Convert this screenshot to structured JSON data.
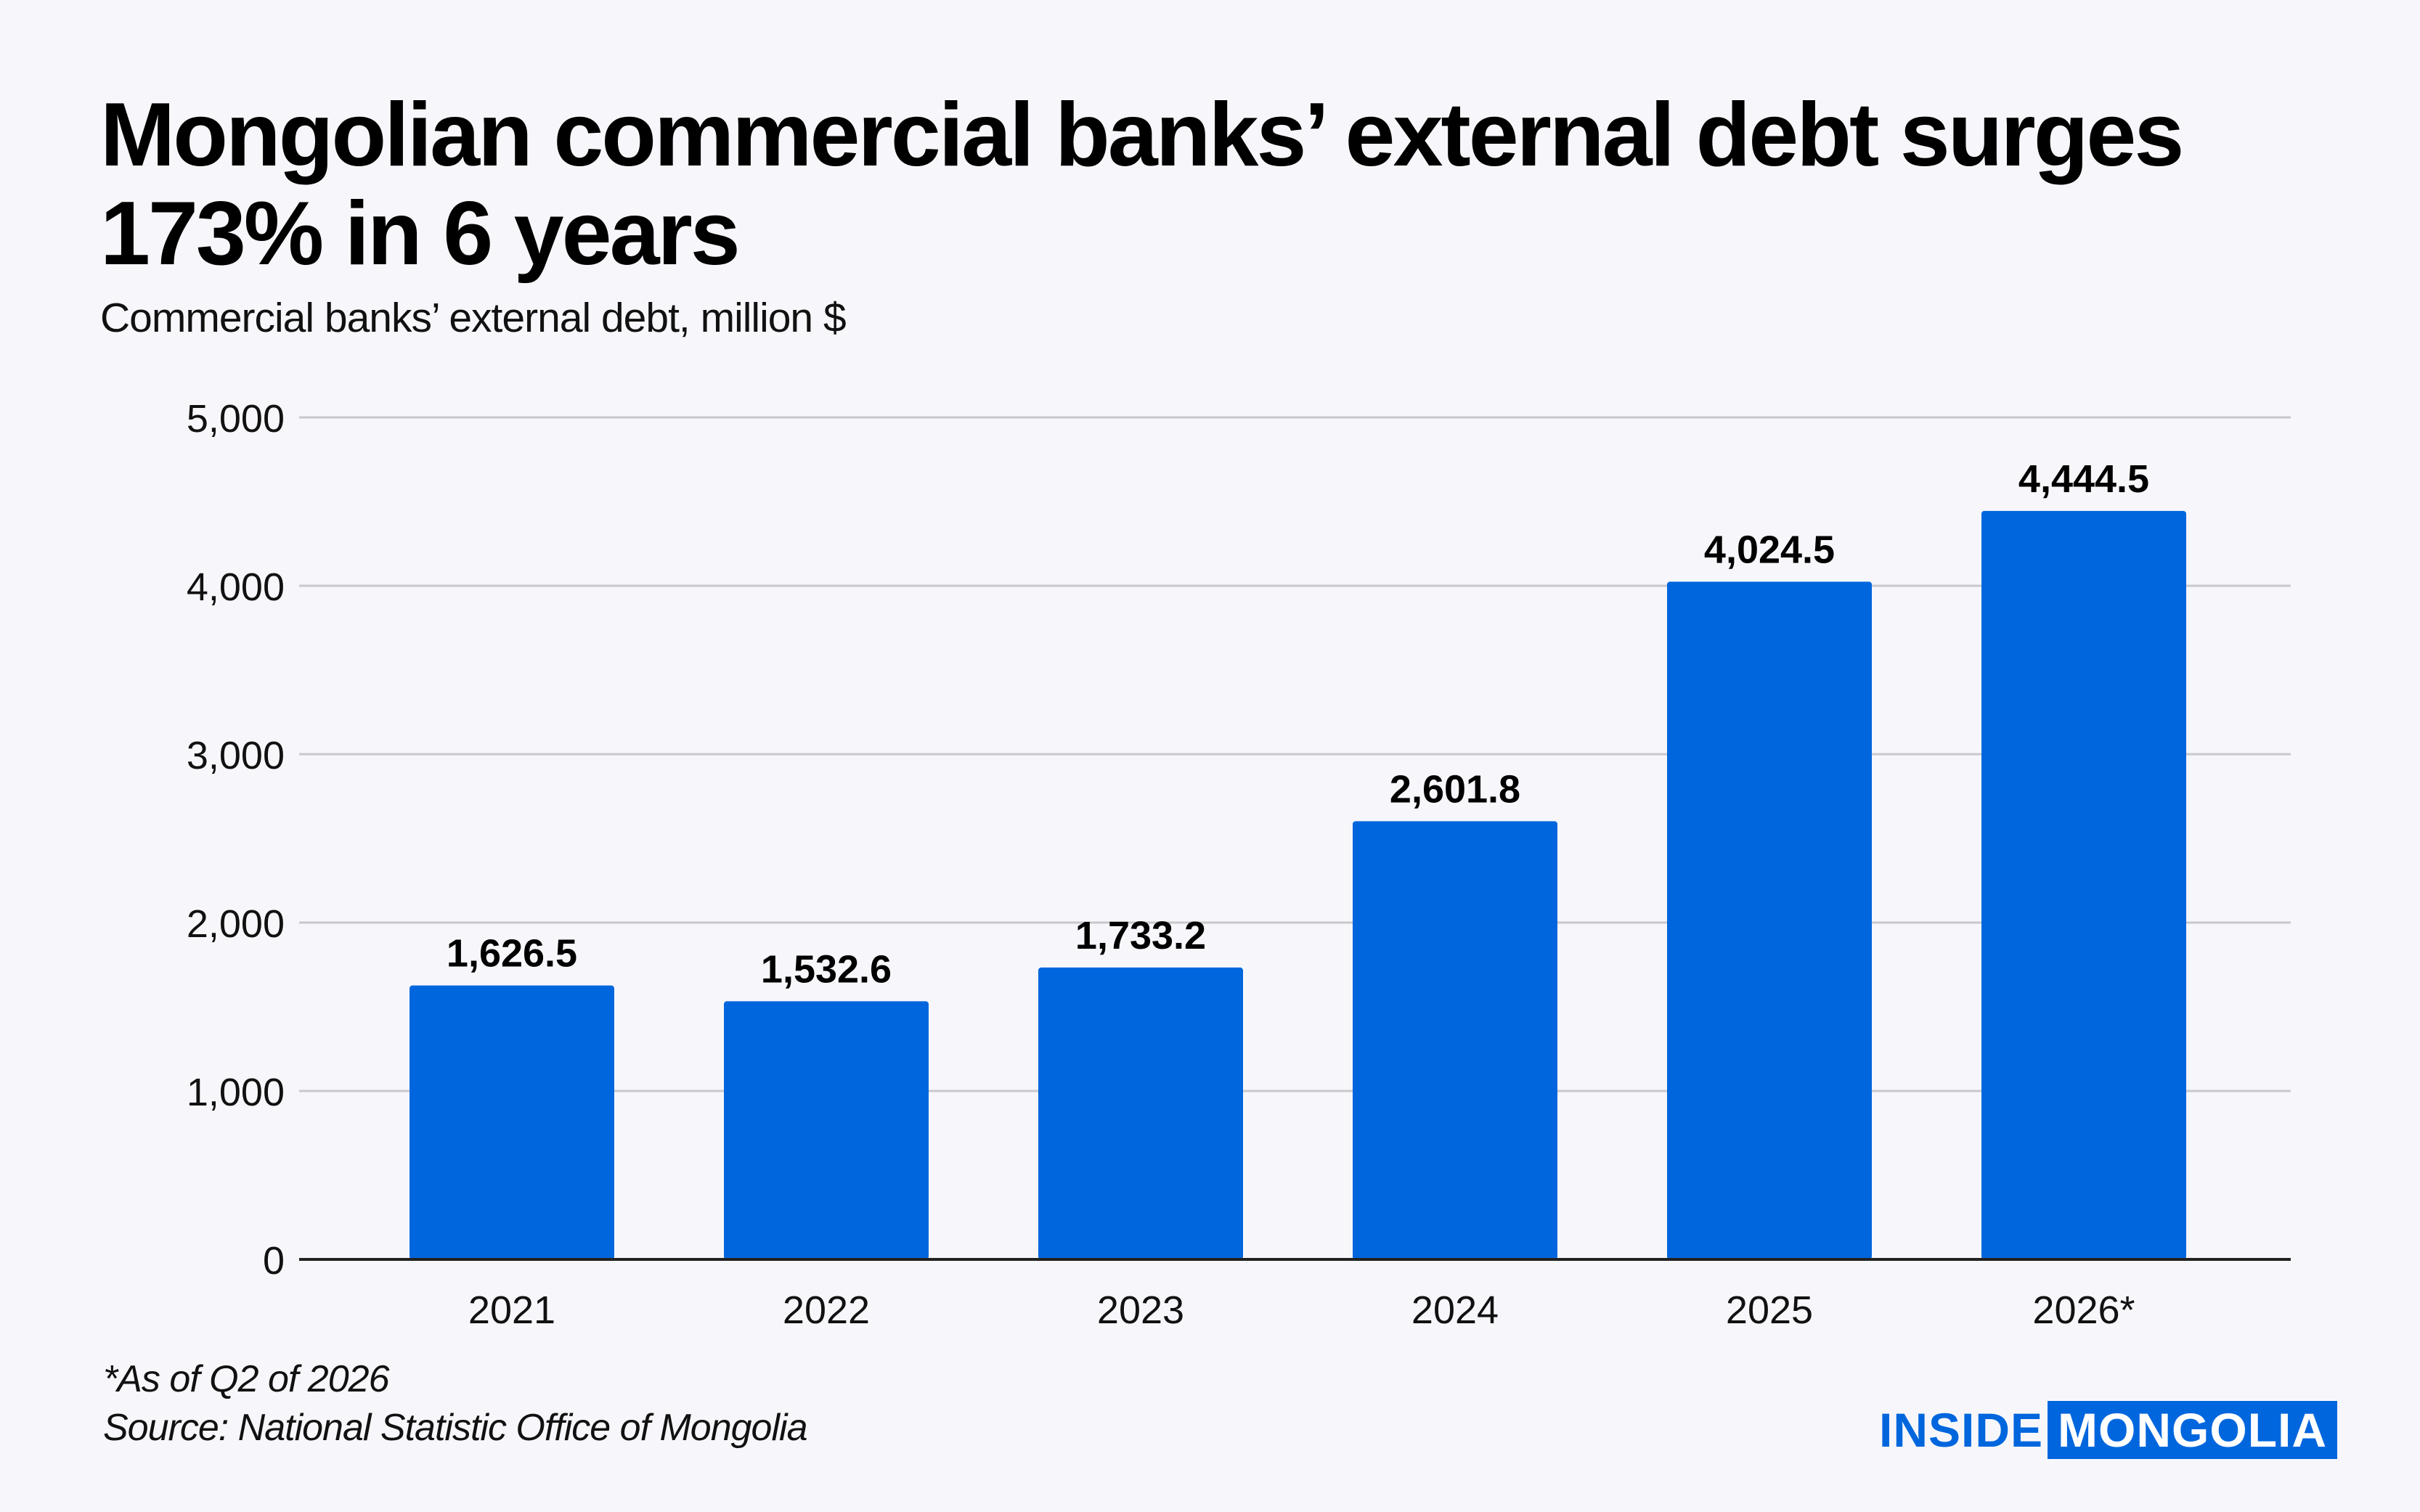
{
  "title": "Mongolian commercial banks’ external debt surges 173% in 6 years",
  "subtitle": "Commercial banks’ external debt, million $",
  "footnote": "*As of Q2 of 2026",
  "source": "Source: National Statistic Office of Mongolia",
  "logo": {
    "part1": "INSIDE",
    "part2": "MONGOLIA"
  },
  "colors": {
    "bar": "#0066dd",
    "grid": "#c8c8cc",
    "axis": "#222222",
    "background": "#f7f7fb"
  },
  "chart_data": {
    "type": "bar",
    "categories": [
      "2021",
      "2022",
      "2023",
      "2024",
      "2025",
      "2026*"
    ],
    "values": [
      1626.5,
      1532.6,
      1733.2,
      2601.8,
      4024.5,
      4444.5
    ],
    "value_labels": [
      "1,626.5",
      "1,532.6",
      "1,733.2",
      "2,601.8",
      "4,024.5",
      "4,444.5"
    ],
    "yticks": [
      0,
      1000,
      2000,
      3000,
      4000,
      5000
    ],
    "ytick_labels": [
      "0",
      "1,000",
      "2,000",
      "3,000",
      "4,000",
      "5,000"
    ],
    "ylim": [
      0,
      5000
    ],
    "grid": true,
    "legend": "none"
  }
}
